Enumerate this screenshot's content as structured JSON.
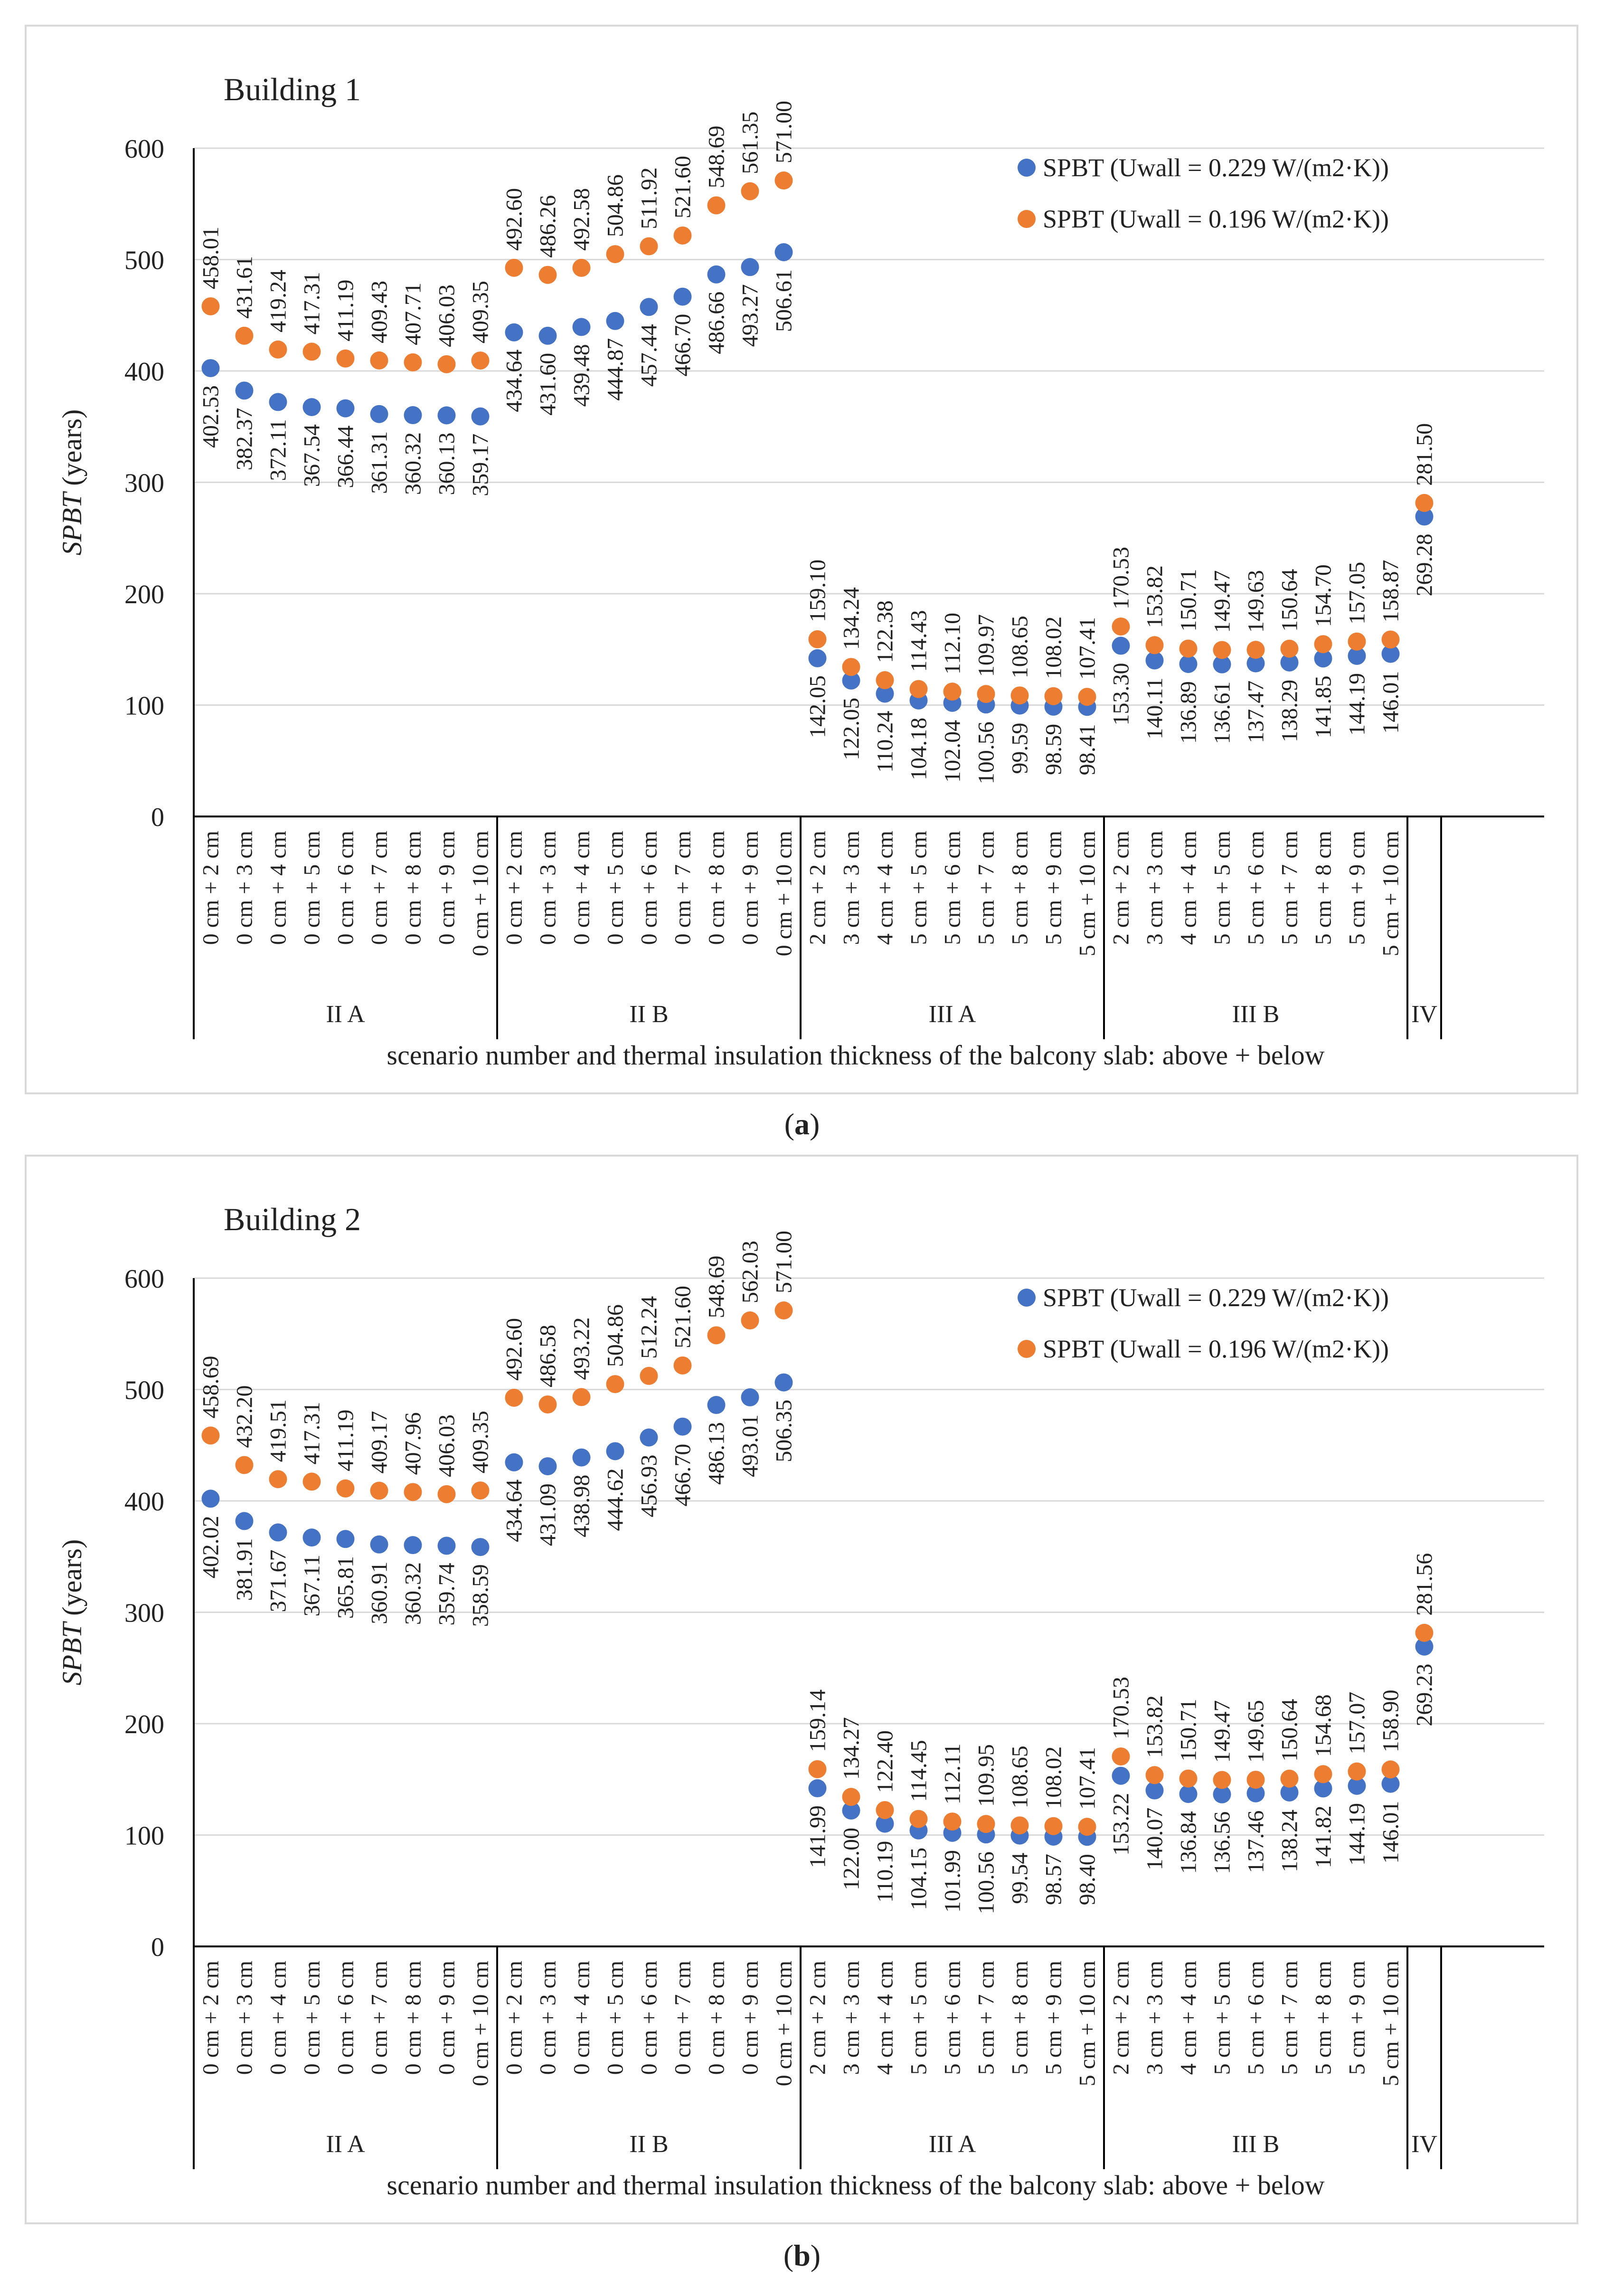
{
  "captions": [
    "(a)",
    "(b)"
  ],
  "caption_letters": [
    "a",
    "b"
  ],
  "colors": {
    "series1": "#4472C4",
    "series2": "#ED7D31",
    "grid": "#d9d9d9",
    "axis": "#000000"
  },
  "chart_data": [
    {
      "type": "scatter",
      "title": "Building 1",
      "ylabel_italic": "SPBT",
      "ylabel_rest": " (years)",
      "xlabel": "scenario number and thermal insulation thickness of the balcony slab: above + below",
      "ylim": [
        0,
        600
      ],
      "yticks": [
        "0",
        "100",
        "200",
        "300",
        "400",
        "500",
        "600"
      ],
      "groups": [
        {
          "name": "II A",
          "count": 9
        },
        {
          "name": "II B",
          "count": 9
        },
        {
          "name": "III A",
          "count": 9
        },
        {
          "name": "III B",
          "count": 9
        },
        {
          "name": "IV",
          "count": 1
        }
      ],
      "categories": [
        "0 cm + 2 cm",
        "0 cm + 3 cm",
        "0 cm + 4 cm",
        "0 cm + 5 cm",
        "0 cm + 6 cm",
        "0 cm + 7 cm",
        "0 cm + 8 cm",
        "0 cm + 9 cm",
        "0 cm + 10 cm",
        "0 cm + 2 cm",
        "0 cm + 3 cm",
        "0 cm + 4 cm",
        "0 cm + 5 cm",
        "0 cm + 6 cm",
        "0 cm + 7 cm",
        "0 cm + 8 cm",
        "0 cm + 9 cm",
        "0 cm + 10 cm",
        "2 cm + 2 cm",
        "3 cm + 3 cm",
        "4 cm + 4 cm",
        "5 cm + 5 cm",
        "5 cm + 6 cm",
        "5 cm + 7 cm",
        "5 cm + 8 cm",
        "5 cm + 9 cm",
        "5 cm + 10 cm",
        "2 cm + 2 cm",
        "3 cm + 3 cm",
        "4 cm + 4 cm",
        "5 cm + 5 cm",
        "5 cm + 6 cm",
        "5 cm + 7 cm",
        "5 cm + 8 cm",
        "5 cm + 9 cm",
        "5 cm + 10 cm",
        ""
      ],
      "series": [
        {
          "name": "SPBT (Uwall = 0.229 W/(m2·K))",
          "color": "#4472C4",
          "label_pos": "below",
          "values": [
            402.53,
            382.37,
            372.11,
            367.54,
            366.44,
            361.31,
            360.32,
            360.13,
            359.17,
            434.64,
            431.6,
            439.48,
            444.87,
            457.44,
            466.7,
            486.66,
            493.27,
            506.61,
            142.05,
            122.05,
            110.24,
            104.18,
            102.04,
            100.56,
            99.59,
            98.59,
            98.41,
            153.3,
            140.11,
            136.89,
            136.61,
            137.47,
            138.29,
            141.85,
            144.19,
            146.01,
            269.28
          ],
          "labels": [
            "402.53",
            "382.37",
            "372.11",
            "367.54",
            "366.44",
            "361.31",
            "360.32",
            "360.13",
            "359.17",
            "434.64",
            "431.60",
            "439.48",
            "444.87",
            "457.44",
            "466.70",
            "486.66",
            "493.27",
            "506.61",
            "142.05",
            "122.05",
            "110.24",
            "104.18",
            "102.04",
            "100.56",
            "99.59",
            "98.59",
            "98.41",
            "153.30",
            "140.11",
            "136.89",
            "136.61",
            "137.47",
            "138.29",
            "141.85",
            "144.19",
            "146.01",
            "269.28"
          ]
        },
        {
          "name": "SPBT (Uwall = 0.196 W/(m2·K))",
          "color": "#ED7D31",
          "label_pos": "above",
          "values": [
            458.01,
            431.61,
            419.24,
            417.31,
            411.19,
            409.43,
            407.71,
            406.03,
            409.35,
            492.6,
            486.26,
            492.58,
            504.86,
            511.92,
            521.6,
            548.69,
            561.35,
            571.0,
            159.1,
            134.24,
            122.38,
            114.43,
            112.1,
            109.97,
            108.65,
            108.02,
            107.41,
            170.53,
            153.82,
            150.71,
            149.47,
            149.63,
            150.64,
            154.7,
            157.05,
            158.87,
            281.5
          ],
          "labels": [
            "458.01",
            "431.61",
            "419.24",
            "417.31",
            "411.19",
            "409.43",
            "407.71",
            "406.03",
            "409.35",
            "492.60",
            "486.26",
            "492.58",
            "504.86",
            "511.92",
            "521.60",
            "548.69",
            "561.35",
            "571.00",
            "159.10",
            "134.24",
            "122.38",
            "114.43",
            "112.10",
            "109.97",
            "108.65",
            "108.02",
            "107.41",
            "170.53",
            "153.82",
            "150.71",
            "149.47",
            "149.63",
            "150.64",
            "154.70",
            "157.05",
            "158.87",
            "281.50"
          ]
        }
      ],
      "legend": "top-right"
    },
    {
      "type": "scatter",
      "title": "Building 2",
      "ylabel_italic": "SPBT",
      "ylabel_rest": " (years)",
      "xlabel": "scenario number and thermal insulation thickness of the balcony slab: above + below",
      "ylim": [
        0,
        600
      ],
      "yticks": [
        "0",
        "100",
        "200",
        "300",
        "400",
        "500",
        "600"
      ],
      "groups": [
        {
          "name": "II A",
          "count": 9
        },
        {
          "name": "II B",
          "count": 9
        },
        {
          "name": "III A",
          "count": 9
        },
        {
          "name": "III B",
          "count": 9
        },
        {
          "name": "IV",
          "count": 1
        }
      ],
      "categories": [
        "0 cm + 2 cm",
        "0 cm + 3 cm",
        "0 cm + 4 cm",
        "0 cm + 5 cm",
        "0 cm + 6 cm",
        "0 cm + 7 cm",
        "0 cm + 8 cm",
        "0 cm + 9 cm",
        "0 cm + 10 cm",
        "0 cm + 2 cm",
        "0 cm + 3 cm",
        "0 cm + 4 cm",
        "0 cm + 5 cm",
        "0 cm + 6 cm",
        "0 cm + 7 cm",
        "0 cm + 8 cm",
        "0 cm + 9 cm",
        "0 cm + 10 cm",
        "2 cm + 2 cm",
        "3 cm + 3 cm",
        "4 cm + 4 cm",
        "5 cm + 5 cm",
        "5 cm + 6 cm",
        "5 cm + 7 cm",
        "5 cm + 8 cm",
        "5 cm + 9 cm",
        "5 cm + 10 cm",
        "2 cm + 2 cm",
        "3 cm + 3 cm",
        "4 cm + 4 cm",
        "5 cm + 5 cm",
        "5 cm + 6 cm",
        "5 cm + 7 cm",
        "5 cm + 8 cm",
        "5 cm + 9 cm",
        "5 cm + 10 cm",
        ""
      ],
      "series": [
        {
          "name": "SPBT (Uwall = 0.229 W/(m2·K))",
          "color": "#4472C4",
          "label_pos": "below",
          "values": [
            402.02,
            381.91,
            371.67,
            367.11,
            365.81,
            360.91,
            360.32,
            359.74,
            358.59,
            434.64,
            431.09,
            438.98,
            444.62,
            456.93,
            466.7,
            486.13,
            493.01,
            506.35,
            141.99,
            122.0,
            110.19,
            104.15,
            101.99,
            100.56,
            99.54,
            98.57,
            98.4,
            153.22,
            140.07,
            136.84,
            136.56,
            137.46,
            138.24,
            141.82,
            144.19,
            146.01,
            269.23
          ],
          "labels": [
            "402.02",
            "381.91",
            "371.67",
            "367.11",
            "365.81",
            "360.91",
            "360.32",
            "359.74",
            "358.59",
            "434.64",
            "431.09",
            "438.98",
            "444.62",
            "456.93",
            "466.70",
            "486.13",
            "493.01",
            "506.35",
            "141.99",
            "122.00",
            "110.19",
            "104.15",
            "101.99",
            "100.56",
            "99.54",
            "98.57",
            "98.40",
            "153.22",
            "140.07",
            "136.84",
            "136.56",
            "137.46",
            "138.24",
            "141.82",
            "144.19",
            "146.01",
            "269.23"
          ]
        },
        {
          "name": "SPBT (Uwall = 0.196 W/(m2·K))",
          "color": "#ED7D31",
          "label_pos": "above",
          "values": [
            458.69,
            432.2,
            419.51,
            417.31,
            411.19,
            409.17,
            407.96,
            406.03,
            409.35,
            492.6,
            486.58,
            493.22,
            504.86,
            512.24,
            521.6,
            548.69,
            562.03,
            571.0,
            159.14,
            134.27,
            122.4,
            114.45,
            112.11,
            109.95,
            108.65,
            108.02,
            107.41,
            170.53,
            153.82,
            150.71,
            149.47,
            149.65,
            150.64,
            154.68,
            157.07,
            158.9,
            281.56
          ],
          "labels": [
            "458.69",
            "432.20",
            "419.51",
            "417.31",
            "411.19",
            "409.17",
            "407.96",
            "406.03",
            "409.35",
            "492.60",
            "486.58",
            "493.22",
            "504.86",
            "512.24",
            "521.60",
            "548.69",
            "562.03",
            "571.00",
            "159.14",
            "134.27",
            "122.40",
            "114.45",
            "112.11",
            "109.95",
            "108.65",
            "108.02",
            "107.41",
            "170.53",
            "153.82",
            "150.71",
            "149.47",
            "149.65",
            "150.64",
            "154.68",
            "157.07",
            "158.90",
            "281.56"
          ]
        }
      ],
      "legend": "top-right"
    }
  ]
}
